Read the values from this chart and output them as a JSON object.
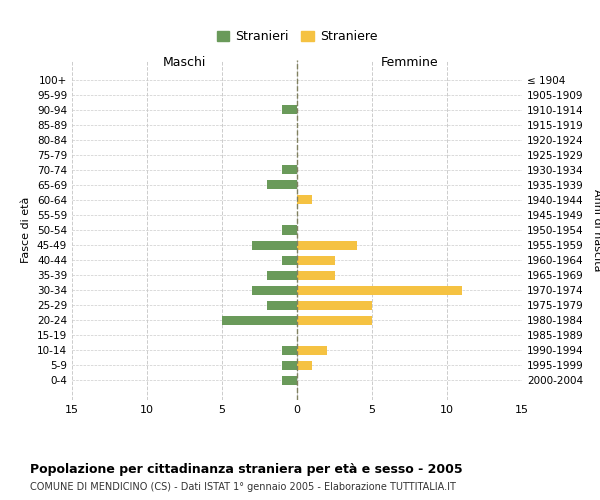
{
  "age_groups": [
    "0-4",
    "5-9",
    "10-14",
    "15-19",
    "20-24",
    "25-29",
    "30-34",
    "35-39",
    "40-44",
    "45-49",
    "50-54",
    "55-59",
    "60-64",
    "65-69",
    "70-74",
    "75-79",
    "80-84",
    "85-89",
    "90-94",
    "95-99",
    "100+"
  ],
  "birth_years": [
    "2000-2004",
    "1995-1999",
    "1990-1994",
    "1985-1989",
    "1980-1984",
    "1975-1979",
    "1970-1974",
    "1965-1969",
    "1960-1964",
    "1955-1959",
    "1950-1954",
    "1945-1949",
    "1940-1944",
    "1935-1939",
    "1930-1934",
    "1925-1929",
    "1920-1924",
    "1915-1919",
    "1910-1914",
    "1905-1909",
    "≤ 1904"
  ],
  "males": [
    1,
    1,
    1,
    0,
    5,
    2,
    3,
    2,
    1,
    3,
    1,
    0,
    0,
    2,
    1,
    0,
    0,
    0,
    1,
    0,
    0
  ],
  "females": [
    0,
    1,
    2,
    0,
    5,
    5,
    11,
    2.5,
    2.5,
    4,
    0,
    0,
    1,
    0,
    0,
    0,
    0,
    0,
    0,
    0,
    0
  ],
  "male_color": "#6a9a5a",
  "female_color": "#f5c242",
  "center_line_color": "#808060",
  "grid_color": "#cccccc",
  "grid_line_style": "--",
  "xlim": 15,
  "title": "Popolazione per cittadinanza straniera per età e sesso - 2005",
  "subtitle": "COMUNE DI MENDICINO (CS) - Dati ISTAT 1° gennaio 2005 - Elaborazione TUTTITALIA.IT",
  "xlabel_left": "Maschi",
  "xlabel_right": "Femmine",
  "ylabel_left": "Fasce di età",
  "ylabel_right": "Anni di nascita",
  "legend_male": "Stranieri",
  "legend_female": "Straniere",
  "background_color": "#ffffff",
  "plot_background": "#ffffff"
}
